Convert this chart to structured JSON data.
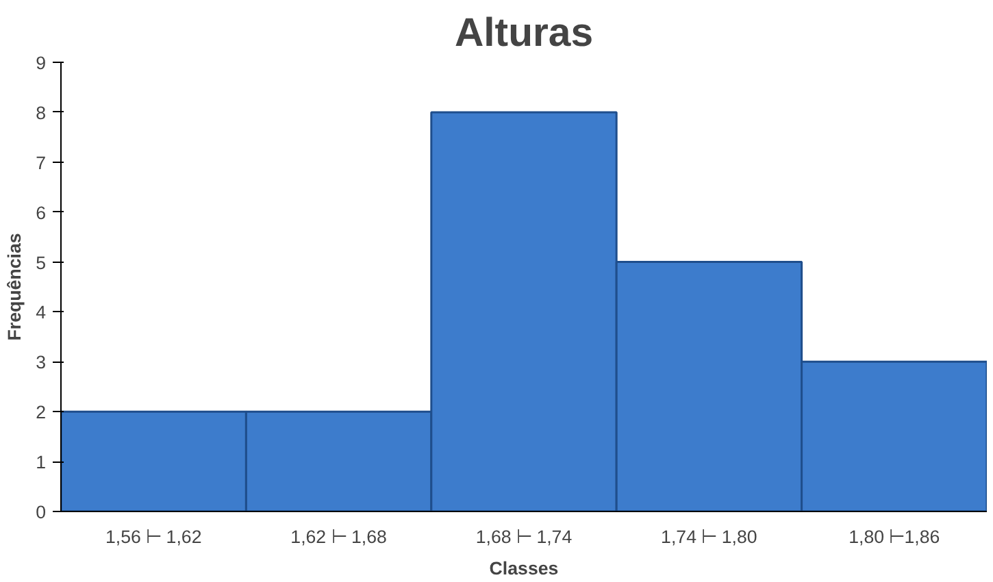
{
  "chart_data": {
    "type": "bar",
    "title": "Alturas",
    "xlabel": "Classes",
    "ylabel": "Frequências",
    "categories": [
      "1,56 ⊢ 1,62",
      "1,62 ⊢ 1,68",
      "1,68 ⊢ 1,74",
      "1,74 ⊢ 1,80",
      "1,80 ⊢1,86"
    ],
    "values": [
      2,
      2,
      8,
      5,
      3
    ],
    "color": "#3d7ccc",
    "ylim": [
      0,
      9
    ],
    "yticks": [
      0,
      1,
      2,
      3,
      4,
      5,
      6,
      7,
      8,
      9
    ],
    "grid": false,
    "legend": false
  }
}
